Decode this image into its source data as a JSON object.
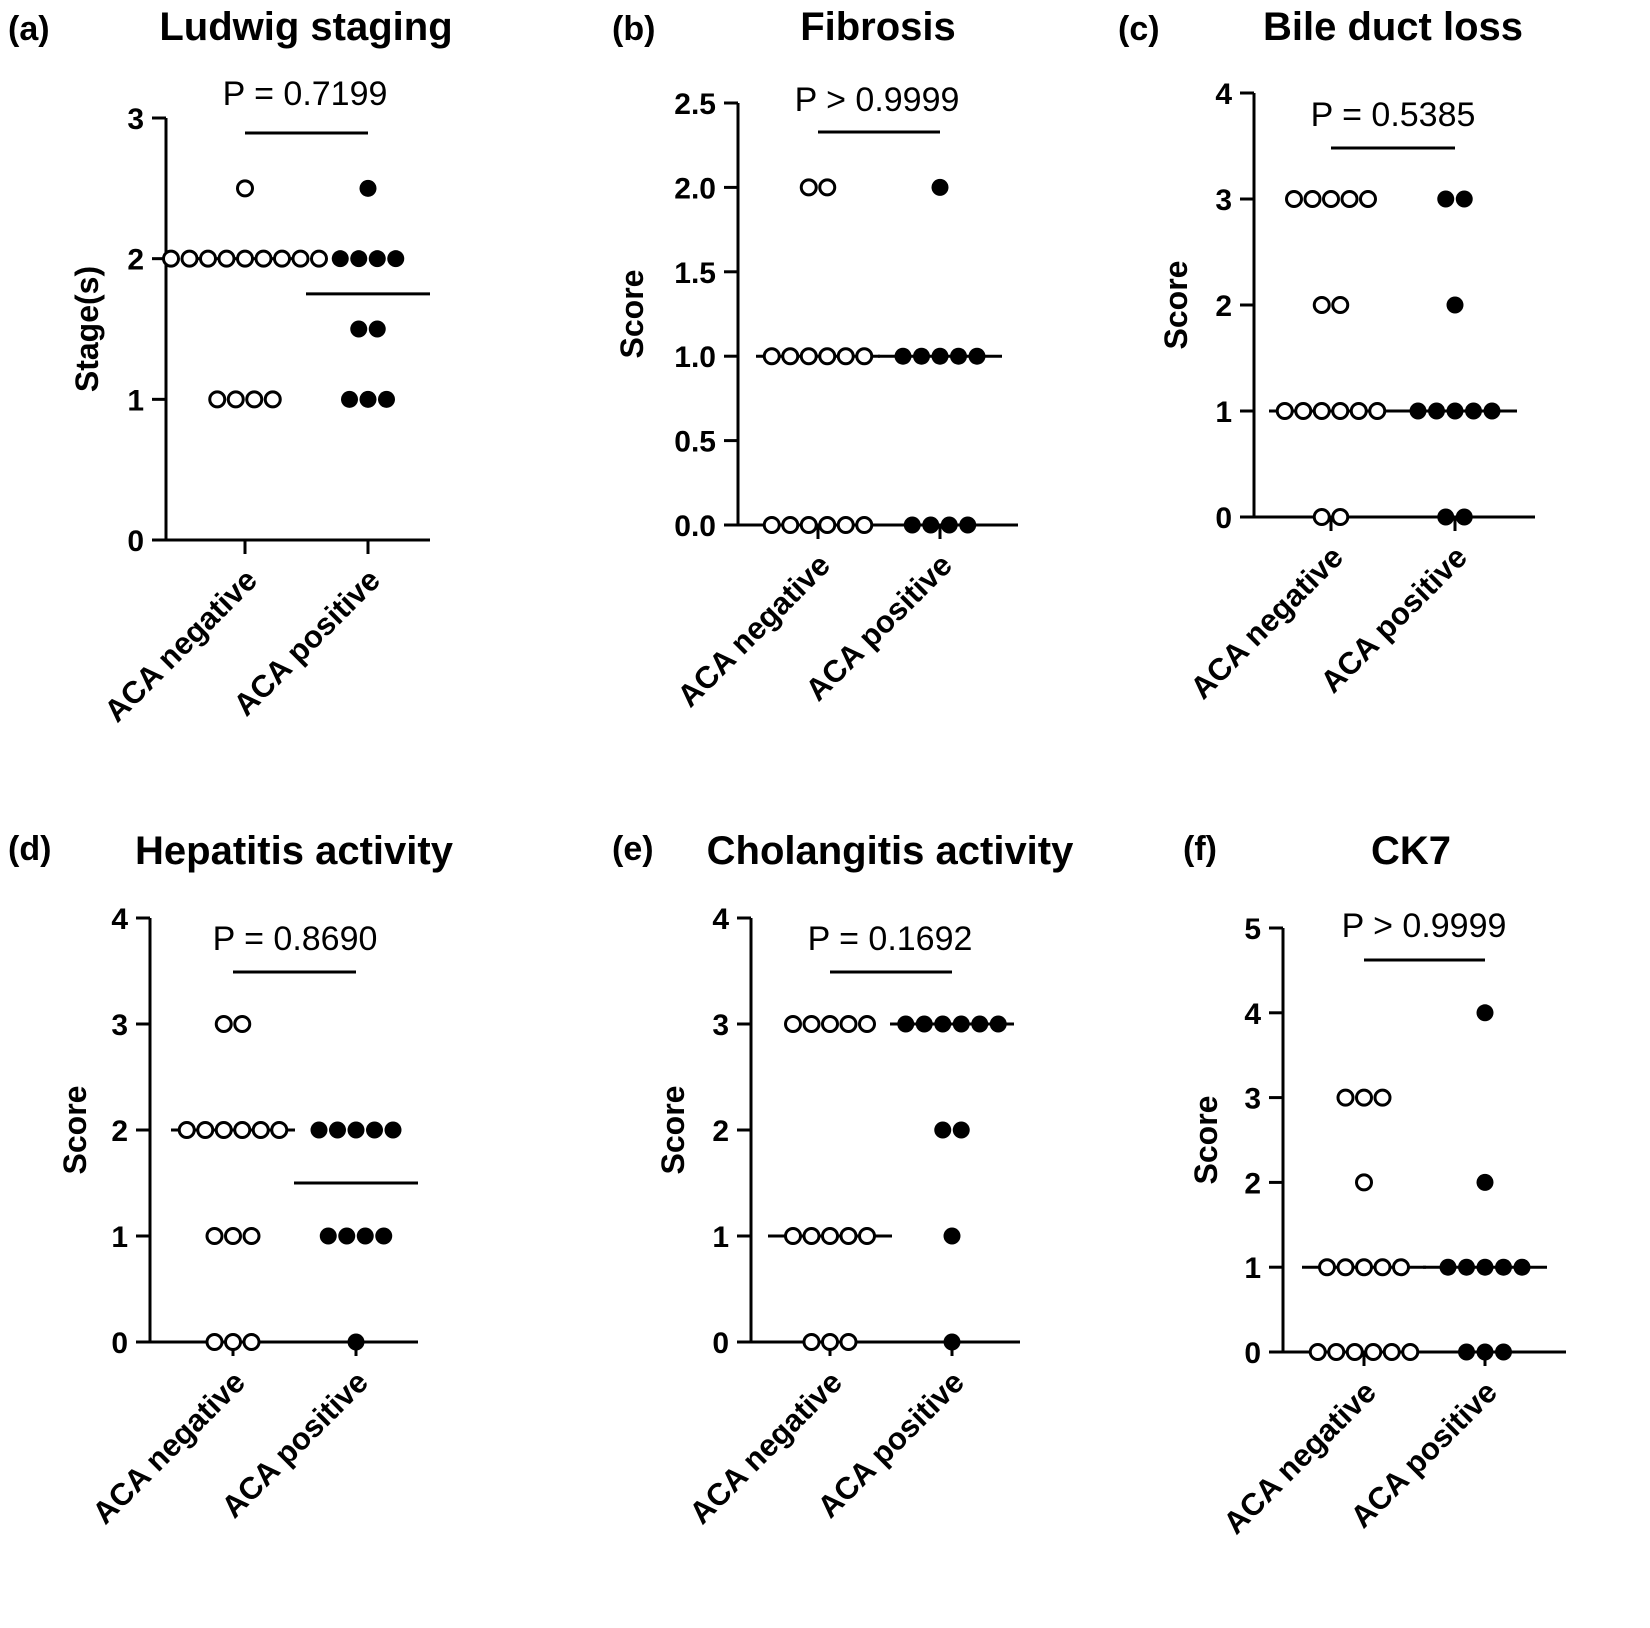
{
  "figure": {
    "panels": [
      {
        "id": "a",
        "label": "(a)",
        "title": "Ludwig staging"
      },
      {
        "id": "b",
        "label": "(b)",
        "title": "Fibrosis"
      },
      {
        "id": "c",
        "label": "(c)",
        "title": "Bile duct loss"
      },
      {
        "id": "d",
        "label": "(d)",
        "title": "Hepatitis activity"
      },
      {
        "id": "e",
        "label": "(e)",
        "title": "Cholangitis activity"
      },
      {
        "id": "f",
        "label": "(f)",
        "title": "CK7"
      }
    ]
  },
  "chart_data": [
    {
      "id": "a",
      "type": "scatter",
      "title": "Ludwig staging",
      "ylabel": "Stage(s)",
      "ylim": [
        0,
        3
      ],
      "yticks": [
        "0",
        "1",
        "2",
        "3"
      ],
      "categories": [
        "ACA negative",
        "ACA positive"
      ],
      "p_value": "P = 0.7199",
      "series": [
        {
          "name": "ACA negative",
          "marker": "open",
          "median": 2,
          "points": [
            {
              "y": 2.5,
              "n": 1
            },
            {
              "y": 2,
              "n": 9
            },
            {
              "y": 1,
              "n": 4
            }
          ]
        },
        {
          "name": "ACA positive",
          "marker": "filled",
          "median": 1.75,
          "points": [
            {
              "y": 2.5,
              "n": 1
            },
            {
              "y": 2,
              "n": 4
            },
            {
              "y": 1.5,
              "n": 2
            },
            {
              "y": 1,
              "n": 3
            }
          ]
        }
      ]
    },
    {
      "id": "b",
      "type": "scatter",
      "title": "Fibrosis",
      "ylabel": "Score",
      "ylim": [
        0,
        2.5
      ],
      "yticks": [
        "0.0",
        "0.5",
        "1.0",
        "1.5",
        "2.0",
        "2.5"
      ],
      "categories": [
        "ACA negative",
        "ACA positive"
      ],
      "p_value": "P > 0.9999",
      "series": [
        {
          "name": "ACA negative",
          "marker": "open",
          "median": 1,
          "points": [
            {
              "y": 2,
              "n": 2
            },
            {
              "y": 1,
              "n": 6
            },
            {
              "y": 0,
              "n": 6
            }
          ]
        },
        {
          "name": "ACA positive",
          "marker": "filled",
          "median": 1,
          "points": [
            {
              "y": 2,
              "n": 1
            },
            {
              "y": 1,
              "n": 5
            },
            {
              "y": 0,
              "n": 4
            }
          ]
        }
      ]
    },
    {
      "id": "c",
      "type": "scatter",
      "title": "Bile duct loss",
      "ylabel": "Score",
      "ylim": [
        0,
        4
      ],
      "yticks": [
        "0",
        "1",
        "2",
        "3",
        "4"
      ],
      "categories": [
        "ACA negative",
        "ACA positive"
      ],
      "p_value": "P = 0.5385",
      "series": [
        {
          "name": "ACA negative",
          "marker": "open",
          "median": 1,
          "points": [
            {
              "y": 3,
              "n": 5
            },
            {
              "y": 2,
              "n": 2
            },
            {
              "y": 1,
              "n": 6
            },
            {
              "y": 0,
              "n": 2
            }
          ]
        },
        {
          "name": "ACA positive",
          "marker": "filled",
          "median": 1,
          "points": [
            {
              "y": 3,
              "n": 2
            },
            {
              "y": 2,
              "n": 1
            },
            {
              "y": 1,
              "n": 5
            },
            {
              "y": 0,
              "n": 2
            }
          ]
        }
      ]
    },
    {
      "id": "d",
      "type": "scatter",
      "title": "Hepatitis activity",
      "ylabel": "Score",
      "ylim": [
        0,
        4
      ],
      "yticks": [
        "0",
        "1",
        "2",
        "3",
        "4"
      ],
      "categories": [
        "ACA negative",
        "ACA positive"
      ],
      "p_value": "P = 0.8690",
      "series": [
        {
          "name": "ACA negative",
          "marker": "open",
          "median": 2,
          "points": [
            {
              "y": 3,
              "n": 2
            },
            {
              "y": 2,
              "n": 6
            },
            {
              "y": 1,
              "n": 3
            },
            {
              "y": 0,
              "n": 3
            }
          ]
        },
        {
          "name": "ACA positive",
          "marker": "filled",
          "median": 1.5,
          "points": [
            {
              "y": 2,
              "n": 5
            },
            {
              "y": 1,
              "n": 4
            },
            {
              "y": 0,
              "n": 1
            }
          ]
        }
      ]
    },
    {
      "id": "e",
      "type": "scatter",
      "title": "Cholangitis activity",
      "ylabel": "Score",
      "ylim": [
        0,
        4
      ],
      "yticks": [
        "0",
        "1",
        "2",
        "3",
        "4"
      ],
      "categories": [
        "ACA negative",
        "ACA positive"
      ],
      "p_value": "P = 0.1692",
      "series": [
        {
          "name": "ACA negative",
          "marker": "open",
          "median": 1,
          "points": [
            {
              "y": 3,
              "n": 5
            },
            {
              "y": 1,
              "n": 5
            },
            {
              "y": 0,
              "n": 3
            }
          ]
        },
        {
          "name": "ACA positive",
          "marker": "filled",
          "median": 3,
          "points": [
            {
              "y": 3,
              "n": 6
            },
            {
              "y": 2,
              "n": 2
            },
            {
              "y": 1,
              "n": 1
            },
            {
              "y": 0,
              "n": 1
            }
          ]
        }
      ]
    },
    {
      "id": "f",
      "type": "scatter",
      "title": "CK7",
      "ylabel": "Score",
      "ylim": [
        0,
        5
      ],
      "yticks": [
        "0",
        "1",
        "2",
        "3",
        "4",
        "5"
      ],
      "categories": [
        "ACA negative",
        "ACA positive"
      ],
      "p_value": "P > 0.9999",
      "series": [
        {
          "name": "ACA negative",
          "marker": "open",
          "median": 1,
          "points": [
            {
              "y": 3,
              "n": 3
            },
            {
              "y": 2,
              "n": 1
            },
            {
              "y": 1,
              "n": 5
            },
            {
              "y": 0,
              "n": 6
            }
          ]
        },
        {
          "name": "ACA positive",
          "marker": "filled",
          "median": 1,
          "points": [
            {
              "y": 4,
              "n": 1
            },
            {
              "y": 2,
              "n": 1
            },
            {
              "y": 1,
              "n": 5
            },
            {
              "y": 0,
              "n": 3
            }
          ]
        }
      ]
    }
  ]
}
